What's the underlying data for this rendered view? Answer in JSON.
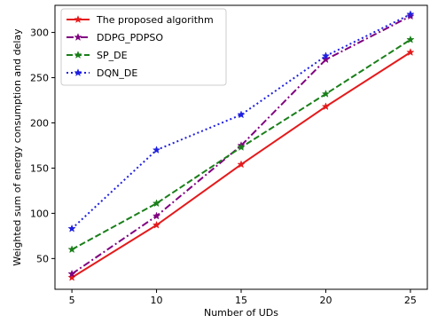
{
  "chart_data": {
    "type": "line",
    "x": [
      5,
      10,
      15,
      20,
      25
    ],
    "xlabel": "Number of UDs",
    "ylabel": "Weighted sum of energy consumption and delay",
    "xticks": [
      "5",
      "10",
      "15",
      "20",
      "25"
    ],
    "yticks": [
      "50",
      "100",
      "150",
      "200",
      "250",
      "300"
    ],
    "xlim": [
      4.0,
      26.0
    ],
    "ylim": [
      16,
      330
    ],
    "grid": false,
    "legend_position": "top-left",
    "series": [
      {
        "name": "The proposed algorithm",
        "values": [
          29,
          87,
          154,
          218,
          278
        ],
        "color": "#e41a1c",
        "line_style": "solid",
        "marker": "star"
      },
      {
        "name": "DDPG_PDPSO",
        "values": [
          33,
          97,
          175,
          270,
          318
        ],
        "color": "#800080",
        "line_style": "dashdot",
        "marker": "star"
      },
      {
        "name": "SP_DE",
        "values": [
          60,
          111,
          173,
          232,
          292
        ],
        "color": "#1a7f1a",
        "line_style": "dashed",
        "marker": "star"
      },
      {
        "name": "DQN_DE",
        "values": [
          83,
          170,
          209,
          274,
          320
        ],
        "color": "#1f1fe0",
        "line_style": "dotted",
        "marker": "star"
      }
    ]
  }
}
